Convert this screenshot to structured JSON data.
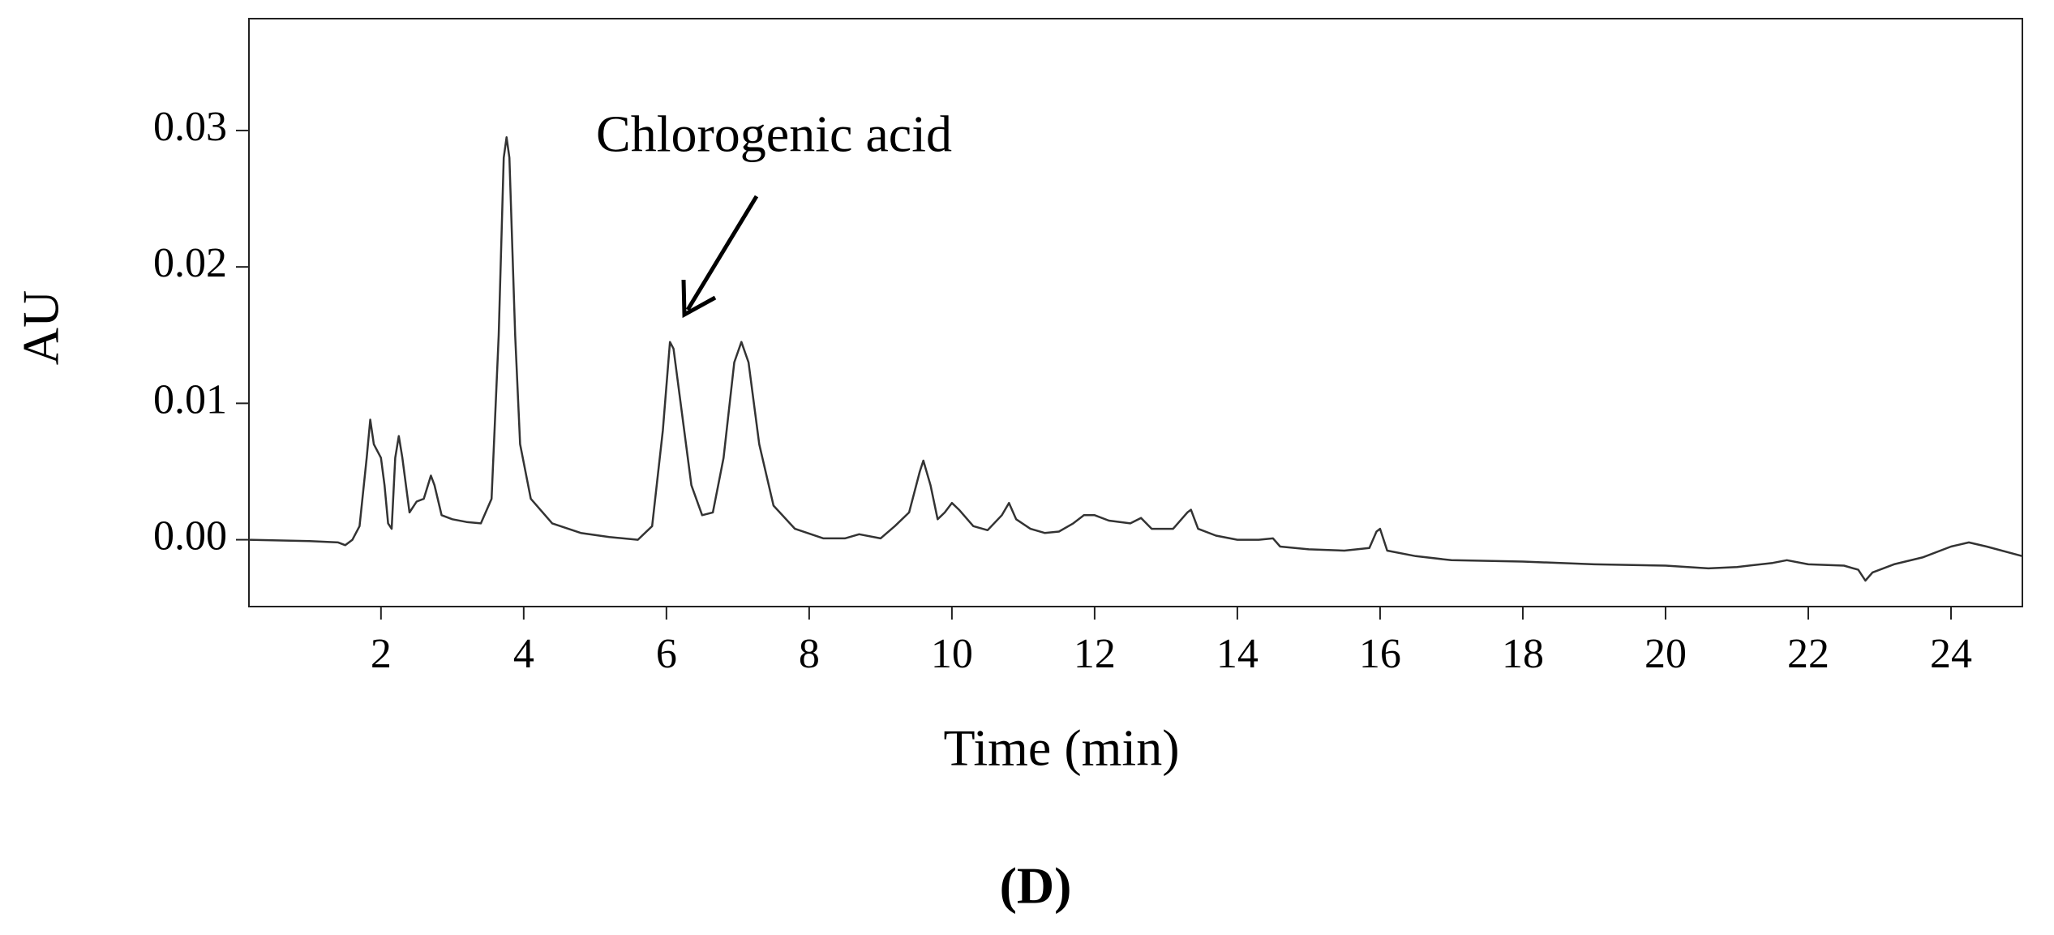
{
  "chart_data": {
    "type": "line",
    "annotation": "Chlorogenic acid",
    "panel_label": "(D)",
    "xlabel": "Time (min)",
    "ylabel": "AU",
    "xlim": [
      0.15,
      25
    ],
    "ylim": [
      -0.0049,
      0.0382
    ],
    "xticks": [
      2,
      4,
      6,
      8,
      10,
      12,
      14,
      16,
      18,
      20,
      22,
      24
    ],
    "yticks": [
      {
        "value": 0,
        "label": "0.00"
      },
      {
        "value": 0.01,
        "label": "0.01"
      },
      {
        "value": 0.02,
        "label": "0.02"
      },
      {
        "value": 0.03,
        "label": "0.03"
      }
    ],
    "color": "#333333",
    "x": [
      0.15,
      1.0,
      1.4,
      1.5,
      1.6,
      1.7,
      1.8,
      1.85,
      1.9,
      1.95,
      2.0,
      2.05,
      2.1,
      2.15,
      2.2,
      2.25,
      2.3,
      2.35,
      2.4,
      2.5,
      2.6,
      2.7,
      2.75,
      2.85,
      3.0,
      3.2,
      3.4,
      3.55,
      3.65,
      3.72,
      3.76,
      3.8,
      3.88,
      3.95,
      4.1,
      4.4,
      4.8,
      5.2,
      5.6,
      5.8,
      5.95,
      6.05,
      6.1,
      6.2,
      6.35,
      6.5,
      6.65,
      6.8,
      6.95,
      7.05,
      7.15,
      7.3,
      7.5,
      7.8,
      8.2,
      8.5,
      8.7,
      9.0,
      9.2,
      9.4,
      9.55,
      9.6,
      9.7,
      9.8,
      9.9,
      10.0,
      10.1,
      10.3,
      10.5,
      10.7,
      10.8,
      10.9,
      11.1,
      11.3,
      11.5,
      11.7,
      11.85,
      12.0,
      12.2,
      12.5,
      12.65,
      12.8,
      13.1,
      13.3,
      13.35,
      13.45,
      13.7,
      14.0,
      14.3,
      14.5,
      14.6,
      15.0,
      15.5,
      15.85,
      15.95,
      16.0,
      16.1,
      16.5,
      17.0,
      18.0,
      19.0,
      20.0,
      20.6,
      21.0,
      21.5,
      21.7,
      22.0,
      22.5,
      22.7,
      22.8,
      22.9,
      23.2,
      23.6,
      24.0,
      24.25,
      24.5,
      25.0
    ],
    "values": [
      0.0,
      -0.0001,
      -0.0002,
      -0.0004,
      0.0,
      0.001,
      0.006,
      0.0088,
      0.007,
      0.0065,
      0.006,
      0.004,
      0.0012,
      0.0008,
      0.006,
      0.0076,
      0.006,
      0.004,
      0.002,
      0.0028,
      0.003,
      0.0047,
      0.004,
      0.0018,
      0.0015,
      0.0013,
      0.0012,
      0.003,
      0.015,
      0.028,
      0.0295,
      0.028,
      0.015,
      0.007,
      0.003,
      0.0012,
      0.0005,
      0.0002,
      0.0,
      0.001,
      0.008,
      0.0145,
      0.014,
      0.01,
      0.004,
      0.0018,
      0.002,
      0.006,
      0.013,
      0.0145,
      0.013,
      0.007,
      0.0025,
      0.0008,
      0.0001,
      0.0001,
      0.0004,
      0.0001,
      0.001,
      0.002,
      0.005,
      0.0058,
      0.004,
      0.0015,
      0.002,
      0.0027,
      0.0022,
      0.001,
      0.0007,
      0.0018,
      0.0027,
      0.0015,
      0.0008,
      0.0005,
      0.0006,
      0.0012,
      0.0018,
      0.0018,
      0.0014,
      0.0012,
      0.0016,
      0.0008,
      0.0008,
      0.002,
      0.0022,
      0.0008,
      0.0003,
      0.0,
      0.0,
      0.0001,
      -0.0005,
      -0.0007,
      -0.0008,
      -0.0006,
      0.0006,
      0.0008,
      -0.0008,
      -0.0012,
      -0.0015,
      -0.0016,
      -0.0018,
      -0.0019,
      -0.0021,
      -0.002,
      -0.0017,
      -0.0015,
      -0.0018,
      -0.0019,
      -0.0022,
      -0.003,
      -0.0024,
      -0.0018,
      -0.0013,
      -0.0005,
      -0.0002,
      -0.0005,
      -0.0012
    ]
  }
}
